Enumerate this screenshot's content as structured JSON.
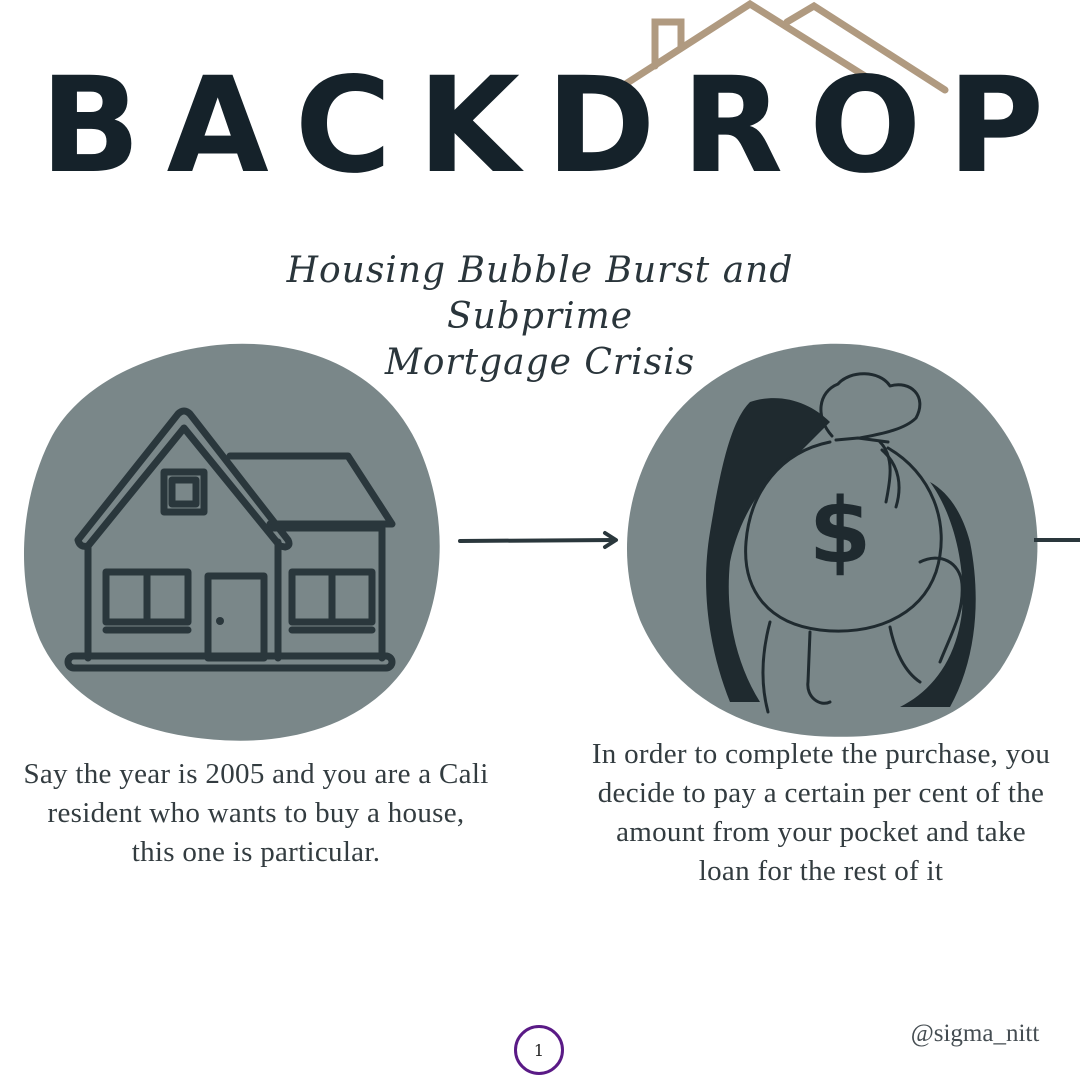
{
  "header": {
    "title": "BACKDROP",
    "subtitle_line1": "Housing Bubble Burst and Subprime",
    "subtitle_line2": "Mortgage Crisis"
  },
  "steps": [
    {
      "illustration": "house-icon",
      "caption_line1": "Say the year is 2005 and you are a Cali",
      "caption_line2": "resident who wants to buy a house,",
      "caption_line3": "this one is particular."
    },
    {
      "illustration": "money-bag-icon",
      "bag_symbol": "$",
      "caption_line1": "In order to complete the purchase, you",
      "caption_line2": "decide to pay a certain per cent of the",
      "caption_line3": "amount from your pocket and take",
      "caption_line4": "loan for the rest of it"
    }
  ],
  "footer": {
    "page_number": "1",
    "handle": "@sigma_nitt"
  },
  "colors": {
    "title": "#15222a",
    "roof_accent": "#b09a80",
    "blob": "#7a8789",
    "line_art": "#2a373c",
    "page_ring": "#5a1a86"
  }
}
